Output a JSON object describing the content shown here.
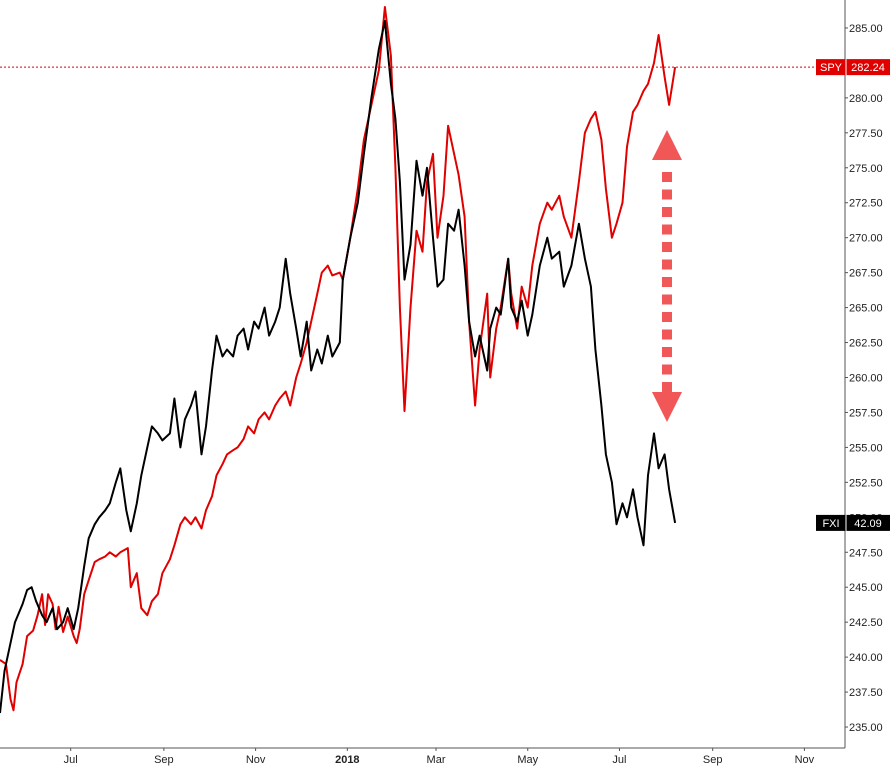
{
  "chart_data": {
    "type": "line",
    "title": "",
    "xlabel": "",
    "ylabel": "",
    "ylim": [
      233.5,
      287
    ],
    "x_range": [
      "2017-05-15",
      "2018-11-28"
    ],
    "y_ticks": [
      "235.00",
      "237.50",
      "240.00",
      "242.50",
      "245.00",
      "247.50",
      "250.00",
      "252.50",
      "255.00",
      "257.50",
      "260.00",
      "262.50",
      "265.00",
      "267.50",
      "270.00",
      "272.50",
      "275.00",
      "277.50",
      "280.00",
      "282.50",
      "285.00"
    ],
    "x_ticks": [
      {
        "date": "2017-07-01",
        "label": "Jul",
        "bold": false
      },
      {
        "date": "2017-09-01",
        "label": "Sep",
        "bold": false
      },
      {
        "date": "2017-11-01",
        "label": "Nov",
        "bold": false
      },
      {
        "date": "2018-01-01",
        "label": "2018",
        "bold": true
      },
      {
        "date": "2018-03-01",
        "label": "Mar",
        "bold": false
      },
      {
        "date": "2018-05-01",
        "label": "May",
        "bold": false
      },
      {
        "date": "2018-07-01",
        "label": "Jul",
        "bold": false
      },
      {
        "date": "2018-09-01",
        "label": "Sep",
        "bold": false
      },
      {
        "date": "2018-11-01",
        "label": "Nov",
        "bold": false
      }
    ],
    "series": [
      {
        "name": "SPY",
        "color": "#e00000",
        "last_value": "282.24",
        "points": [
          [
            "2017-05-15",
            239.8
          ],
          [
            "2017-05-19",
            239.5
          ],
          [
            "2017-05-22",
            237.0
          ],
          [
            "2017-05-24",
            236.2
          ],
          [
            "2017-05-26",
            238.2
          ],
          [
            "2017-05-30",
            239.5
          ],
          [
            "2017-06-02",
            241.5
          ],
          [
            "2017-06-06",
            241.9
          ],
          [
            "2017-06-09",
            243.0
          ],
          [
            "2017-06-12",
            244.5
          ],
          [
            "2017-06-14",
            242.3
          ],
          [
            "2017-06-16",
            244.5
          ],
          [
            "2017-06-19",
            243.8
          ],
          [
            "2017-06-21",
            242.0
          ],
          [
            "2017-06-23",
            243.6
          ],
          [
            "2017-06-26",
            241.8
          ],
          [
            "2017-06-29",
            242.9
          ],
          [
            "2017-07-03",
            241.5
          ],
          [
            "2017-07-05",
            241.0
          ],
          [
            "2017-07-07",
            242.0
          ],
          [
            "2017-07-10",
            244.5
          ],
          [
            "2017-07-13",
            245.5
          ],
          [
            "2017-07-17",
            246.8
          ],
          [
            "2017-07-20",
            247.0
          ],
          [
            "2017-07-24",
            247.2
          ],
          [
            "2017-07-27",
            247.5
          ],
          [
            "2017-07-31",
            247.2
          ],
          [
            "2017-08-03",
            247.5
          ],
          [
            "2017-08-08",
            247.8
          ],
          [
            "2017-08-10",
            245.0
          ],
          [
            "2017-08-14",
            246.0
          ],
          [
            "2017-08-17",
            243.5
          ],
          [
            "2017-08-21",
            243.0
          ],
          [
            "2017-08-24",
            244.0
          ],
          [
            "2017-08-28",
            244.5
          ],
          [
            "2017-08-31",
            246.0
          ],
          [
            "2017-09-05",
            247.0
          ],
          [
            "2017-09-08",
            248.0
          ],
          [
            "2017-09-12",
            249.5
          ],
          [
            "2017-09-15",
            250.0
          ],
          [
            "2017-09-19",
            249.5
          ],
          [
            "2017-09-22",
            250.0
          ],
          [
            "2017-09-26",
            249.2
          ],
          [
            "2017-09-29",
            250.5
          ],
          [
            "2017-10-03",
            251.5
          ],
          [
            "2017-10-06",
            253.0
          ],
          [
            "2017-10-10",
            253.8
          ],
          [
            "2017-10-13",
            254.5
          ],
          [
            "2017-10-17",
            254.8
          ],
          [
            "2017-10-20",
            255.0
          ],
          [
            "2017-10-24",
            255.6
          ],
          [
            "2017-10-27",
            256.5
          ],
          [
            "2017-10-31",
            256.0
          ],
          [
            "2017-11-03",
            257.0
          ],
          [
            "2017-11-07",
            257.5
          ],
          [
            "2017-11-10",
            257.0
          ],
          [
            "2017-11-14",
            258.0
          ],
          [
            "2017-11-17",
            258.5
          ],
          [
            "2017-11-21",
            259.0
          ],
          [
            "2017-11-24",
            258.0
          ],
          [
            "2017-11-28",
            260.0
          ],
          [
            "2017-12-01",
            261.0
          ],
          [
            "2017-12-05",
            262.5
          ],
          [
            "2017-12-08",
            264.0
          ],
          [
            "2017-12-12",
            266.0
          ],
          [
            "2017-12-15",
            267.5
          ],
          [
            "2017-12-19",
            268.0
          ],
          [
            "2017-12-22",
            267.3
          ],
          [
            "2017-12-27",
            267.5
          ],
          [
            "2017-12-29",
            267.0
          ],
          [
            "2018-01-03",
            270.0
          ],
          [
            "2018-01-08",
            273.5
          ],
          [
            "2018-01-12",
            277.0
          ],
          [
            "2018-01-17",
            279.5
          ],
          [
            "2018-01-22",
            282.0
          ],
          [
            "2018-01-26",
            286.5
          ],
          [
            "2018-01-30",
            283.0
          ],
          [
            "2018-02-02",
            275.0
          ],
          [
            "2018-02-05",
            265.0
          ],
          [
            "2018-02-08",
            257.6
          ],
          [
            "2018-02-12",
            265.0
          ],
          [
            "2018-02-16",
            270.5
          ],
          [
            "2018-02-20",
            269.0
          ],
          [
            "2018-02-23",
            274.0
          ],
          [
            "2018-02-27",
            276.0
          ],
          [
            "2018-03-02",
            270.0
          ],
          [
            "2018-03-06",
            273.0
          ],
          [
            "2018-03-09",
            278.0
          ],
          [
            "2018-03-13",
            276.0
          ],
          [
            "2018-03-16",
            274.5
          ],
          [
            "2018-03-20",
            271.5
          ],
          [
            "2018-03-23",
            264.0
          ],
          [
            "2018-03-27",
            258.0
          ],
          [
            "2018-03-30",
            262.0
          ],
          [
            "2018-04-04",
            266.0
          ],
          [
            "2018-04-06",
            260.0
          ],
          [
            "2018-04-10",
            263.5
          ],
          [
            "2018-04-13",
            265.0
          ],
          [
            "2018-04-18",
            268.5
          ],
          [
            "2018-04-20",
            266.0
          ],
          [
            "2018-04-24",
            263.5
          ],
          [
            "2018-04-27",
            266.5
          ],
          [
            "2018-05-01",
            265.0
          ],
          [
            "2018-05-04",
            268.0
          ],
          [
            "2018-05-09",
            271.0
          ],
          [
            "2018-05-14",
            272.5
          ],
          [
            "2018-05-17",
            272.0
          ],
          [
            "2018-05-22",
            273.0
          ],
          [
            "2018-05-25",
            271.5
          ],
          [
            "2018-05-30",
            270.0
          ],
          [
            "2018-06-04",
            274.0
          ],
          [
            "2018-06-08",
            277.5
          ],
          [
            "2018-06-12",
            278.5
          ],
          [
            "2018-06-15",
            279.0
          ],
          [
            "2018-06-19",
            277.0
          ],
          [
            "2018-06-22",
            273.5
          ],
          [
            "2018-06-26",
            270.0
          ],
          [
            "2018-06-29",
            271.0
          ],
          [
            "2018-07-03",
            272.5
          ],
          [
            "2018-07-06",
            276.5
          ],
          [
            "2018-07-10",
            279.0
          ],
          [
            "2018-07-13",
            279.5
          ],
          [
            "2018-07-17",
            280.5
          ],
          [
            "2018-07-20",
            281.0
          ],
          [
            "2018-07-24",
            282.5
          ],
          [
            "2018-07-27",
            284.5
          ],
          [
            "2018-07-31",
            281.5
          ],
          [
            "2018-08-03",
            279.5
          ],
          [
            "2018-08-07",
            282.2
          ]
        ]
      },
      {
        "name": "FXI",
        "color": "#000000",
        "last_value": "42.09",
        "points": [
          [
            "2017-05-15",
            236.0
          ],
          [
            "2017-05-18",
            239.0
          ],
          [
            "2017-05-22",
            241.0
          ],
          [
            "2017-05-25",
            242.5
          ],
          [
            "2017-05-30",
            243.8
          ],
          [
            "2017-06-02",
            244.8
          ],
          [
            "2017-06-05",
            245.0
          ],
          [
            "2017-06-08",
            244.0
          ],
          [
            "2017-06-12",
            243.0
          ],
          [
            "2017-06-15",
            242.5
          ],
          [
            "2017-06-19",
            243.5
          ],
          [
            "2017-06-22",
            242.0
          ],
          [
            "2017-06-26",
            242.5
          ],
          [
            "2017-06-29",
            243.5
          ],
          [
            "2017-07-03",
            242.0
          ],
          [
            "2017-07-06",
            243.5
          ],
          [
            "2017-07-10",
            246.5
          ],
          [
            "2017-07-13",
            248.5
          ],
          [
            "2017-07-17",
            249.5
          ],
          [
            "2017-07-20",
            250.0
          ],
          [
            "2017-07-24",
            250.5
          ],
          [
            "2017-07-27",
            251.0
          ],
          [
            "2017-07-31",
            252.5
          ],
          [
            "2017-08-03",
            253.5
          ],
          [
            "2017-08-07",
            250.5
          ],
          [
            "2017-08-10",
            249.0
          ],
          [
            "2017-08-14",
            251.0
          ],
          [
            "2017-08-17",
            253.0
          ],
          [
            "2017-08-21",
            255.0
          ],
          [
            "2017-08-24",
            256.5
          ],
          [
            "2017-08-28",
            256.0
          ],
          [
            "2017-08-31",
            255.5
          ],
          [
            "2017-09-05",
            256.0
          ],
          [
            "2017-09-08",
            258.5
          ],
          [
            "2017-09-12",
            255.0
          ],
          [
            "2017-09-15",
            257.0
          ],
          [
            "2017-09-19",
            258.0
          ],
          [
            "2017-09-22",
            259.0
          ],
          [
            "2017-09-26",
            254.5
          ],
          [
            "2017-09-29",
            256.5
          ],
          [
            "2017-10-03",
            260.5
          ],
          [
            "2017-10-06",
            263.0
          ],
          [
            "2017-10-10",
            261.5
          ],
          [
            "2017-10-13",
            262.0
          ],
          [
            "2017-10-17",
            261.5
          ],
          [
            "2017-10-20",
            263.0
          ],
          [
            "2017-10-24",
            263.5
          ],
          [
            "2017-10-27",
            262.0
          ],
          [
            "2017-10-31",
            264.0
          ],
          [
            "2017-11-03",
            263.5
          ],
          [
            "2017-11-07",
            265.0
          ],
          [
            "2017-11-10",
            263.0
          ],
          [
            "2017-11-14",
            264.0
          ],
          [
            "2017-11-17",
            265.0
          ],
          [
            "2017-11-21",
            268.5
          ],
          [
            "2017-11-24",
            266.0
          ],
          [
            "2017-11-28",
            263.5
          ],
          [
            "2017-12-01",
            261.5
          ],
          [
            "2017-12-05",
            264.0
          ],
          [
            "2017-12-08",
            260.5
          ],
          [
            "2017-12-12",
            262.0
          ],
          [
            "2017-12-15",
            261.0
          ],
          [
            "2017-12-19",
            263.0
          ],
          [
            "2017-12-22",
            261.5
          ],
          [
            "2017-12-27",
            262.5
          ],
          [
            "2017-12-29",
            267.0
          ],
          [
            "2018-01-03",
            270.0
          ],
          [
            "2018-01-08",
            272.5
          ],
          [
            "2018-01-12",
            276.0
          ],
          [
            "2018-01-17",
            280.0
          ],
          [
            "2018-01-22",
            283.5
          ],
          [
            "2018-01-26",
            285.5
          ],
          [
            "2018-01-30",
            281.0
          ],
          [
            "2018-02-02",
            278.5
          ],
          [
            "2018-02-05",
            274.0
          ],
          [
            "2018-02-08",
            267.0
          ],
          [
            "2018-02-12",
            269.5
          ],
          [
            "2018-02-16",
            275.5
          ],
          [
            "2018-02-20",
            273.0
          ],
          [
            "2018-02-23",
            275.0
          ],
          [
            "2018-02-27",
            270.0
          ],
          [
            "2018-03-02",
            266.5
          ],
          [
            "2018-03-06",
            267.0
          ],
          [
            "2018-03-09",
            271.0
          ],
          [
            "2018-03-13",
            270.5
          ],
          [
            "2018-03-16",
            272.0
          ],
          [
            "2018-03-20",
            268.0
          ],
          [
            "2018-03-23",
            264.0
          ],
          [
            "2018-03-27",
            261.5
          ],
          [
            "2018-03-30",
            263.0
          ],
          [
            "2018-04-04",
            260.5
          ],
          [
            "2018-04-06",
            263.5
          ],
          [
            "2018-04-10",
            265.0
          ],
          [
            "2018-04-13",
            264.5
          ],
          [
            "2018-04-18",
            268.5
          ],
          [
            "2018-04-20",
            265.0
          ],
          [
            "2018-04-24",
            264.0
          ],
          [
            "2018-04-27",
            265.5
          ],
          [
            "2018-05-01",
            263.0
          ],
          [
            "2018-05-04",
            264.5
          ],
          [
            "2018-05-09",
            268.0
          ],
          [
            "2018-05-14",
            270.0
          ],
          [
            "2018-05-17",
            268.5
          ],
          [
            "2018-05-22",
            269.0
          ],
          [
            "2018-05-25",
            266.5
          ],
          [
            "2018-05-30",
            268.0
          ],
          [
            "2018-06-04",
            271.0
          ],
          [
            "2018-06-08",
            268.5
          ],
          [
            "2018-06-12",
            266.5
          ],
          [
            "2018-06-15",
            262.0
          ],
          [
            "2018-06-19",
            258.0
          ],
          [
            "2018-06-22",
            254.5
          ],
          [
            "2018-06-26",
            252.5
          ],
          [
            "2018-06-29",
            249.5
          ],
          [
            "2018-07-03",
            251.0
          ],
          [
            "2018-07-06",
            250.0
          ],
          [
            "2018-07-10",
            252.0
          ],
          [
            "2018-07-13",
            250.0
          ],
          [
            "2018-07-17",
            248.0
          ],
          [
            "2018-07-20",
            253.0
          ],
          [
            "2018-07-24",
            256.0
          ],
          [
            "2018-07-27",
            253.5
          ],
          [
            "2018-07-31",
            254.5
          ],
          [
            "2018-08-03",
            252.0
          ],
          [
            "2018-08-07",
            249.6
          ]
        ]
      }
    ],
    "grid": false,
    "legend": "none"
  }
}
